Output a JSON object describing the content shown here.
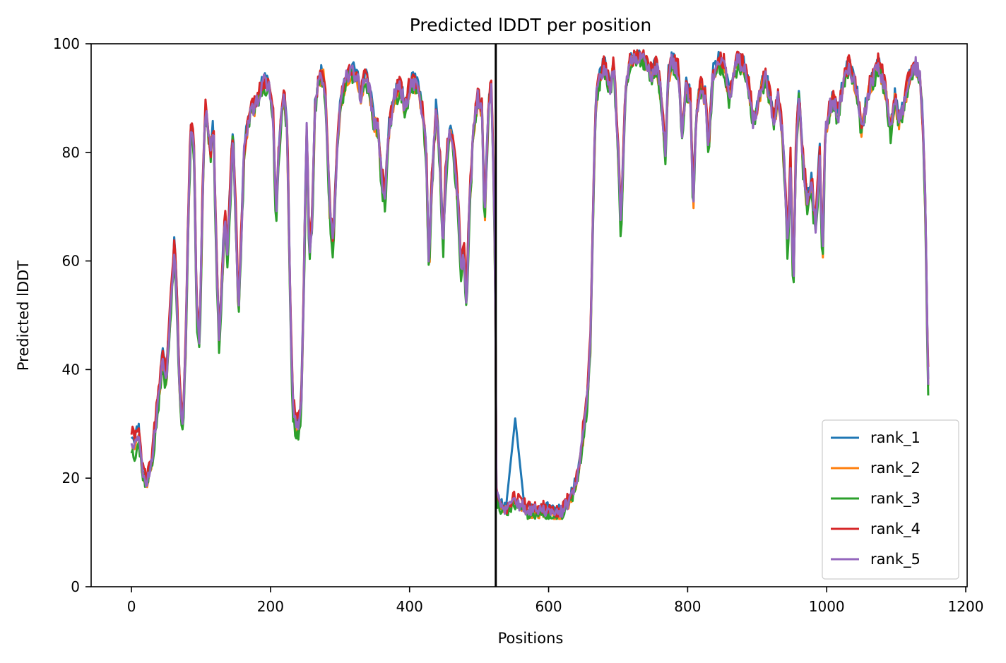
{
  "chart_data": {
    "type": "line",
    "title": "Predicted lDDT per position",
    "xlabel": "Positions",
    "ylabel": "Predicted lDDT",
    "xlim": [
      -58,
      1202
    ],
    "ylim": [
      0,
      100
    ],
    "xticks": [
      0,
      200,
      400,
      600,
      800,
      1000,
      1200
    ],
    "yticks": [
      0,
      20,
      40,
      60,
      80,
      100
    ],
    "grid": false,
    "legend_position": "lower right",
    "vline_x": 524,
    "vline_color": "#000000",
    "series": [
      {
        "name": "rank_1",
        "color": "#1f77b4",
        "offset": 1.2,
        "seed": 11
      },
      {
        "name": "rank_2",
        "color": "#ff7f0e",
        "offset": -0.8,
        "seed": 23
      },
      {
        "name": "rank_3",
        "color": "#2ca02c",
        "offset": -1.8,
        "seed": 37
      },
      {
        "name": "rank_4",
        "color": "#d62728",
        "offset": 1.6,
        "seed": 41
      },
      {
        "name": "rank_5",
        "color": "#9467bd",
        "offset": 0.0,
        "seed": 53
      }
    ],
    "base_profile": [
      [
        0,
        27
      ],
      [
        5,
        26
      ],
      [
        10,
        29
      ],
      [
        15,
        22
      ],
      [
        22,
        19
      ],
      [
        30,
        24
      ],
      [
        38,
        34
      ],
      [
        45,
        42
      ],
      [
        50,
        38
      ],
      [
        58,
        55
      ],
      [
        62,
        63
      ],
      [
        66,
        50
      ],
      [
        70,
        34
      ],
      [
        74,
        30
      ],
      [
        78,
        44
      ],
      [
        82,
        70
      ],
      [
        86,
        86
      ],
      [
        90,
        80
      ],
      [
        94,
        50
      ],
      [
        98,
        45
      ],
      [
        102,
        70
      ],
      [
        106,
        88
      ],
      [
        110,
        84
      ],
      [
        114,
        80
      ],
      [
        118,
        85
      ],
      [
        122,
        62
      ],
      [
        126,
        45
      ],
      [
        130,
        55
      ],
      [
        134,
        68
      ],
      [
        138,
        62
      ],
      [
        142,
        72
      ],
      [
        146,
        84
      ],
      [
        150,
        68
      ],
      [
        154,
        50
      ],
      [
        158,
        65
      ],
      [
        162,
        80
      ],
      [
        168,
        86
      ],
      [
        175,
        88
      ],
      [
        182,
        90
      ],
      [
        190,
        93
      ],
      [
        198,
        92
      ],
      [
        204,
        86
      ],
      [
        208,
        68
      ],
      [
        212,
        80
      ],
      [
        216,
        88
      ],
      [
        220,
        90
      ],
      [
        224,
        84
      ],
      [
        228,
        55
      ],
      [
        232,
        33
      ],
      [
        238,
        29
      ],
      [
        244,
        32
      ],
      [
        248,
        56
      ],
      [
        252,
        84
      ],
      [
        256,
        62
      ],
      [
        260,
        68
      ],
      [
        264,
        88
      ],
      [
        270,
        94
      ],
      [
        276,
        94
      ],
      [
        280,
        88
      ],
      [
        285,
        70
      ],
      [
        290,
        62
      ],
      [
        296,
        82
      ],
      [
        302,
        90
      ],
      [
        310,
        94
      ],
      [
        318,
        95
      ],
      [
        325,
        94
      ],
      [
        330,
        90
      ],
      [
        336,
        94
      ],
      [
        342,
        92
      ],
      [
        348,
        86
      ],
      [
        355,
        84
      ],
      [
        360,
        75
      ],
      [
        365,
        72
      ],
      [
        370,
        84
      ],
      [
        378,
        90
      ],
      [
        386,
        92
      ],
      [
        394,
        88
      ],
      [
        400,
        92
      ],
      [
        406,
        93
      ],
      [
        412,
        92
      ],
      [
        418,
        88
      ],
      [
        424,
        80
      ],
      [
        428,
        58
      ],
      [
        432,
        74
      ],
      [
        438,
        88
      ],
      [
        444,
        78
      ],
      [
        448,
        62
      ],
      [
        452,
        76
      ],
      [
        458,
        84
      ],
      [
        464,
        80
      ],
      [
        470,
        70
      ],
      [
        474,
        58
      ],
      [
        478,
        62
      ],
      [
        482,
        52
      ],
      [
        486,
        70
      ],
      [
        492,
        84
      ],
      [
        498,
        90
      ],
      [
        504,
        88
      ],
      [
        508,
        68
      ],
      [
        514,
        90
      ],
      [
        518,
        92
      ],
      [
        523,
        62
      ],
      [
        525,
        17
      ],
      [
        530,
        15
      ],
      [
        540,
        14
      ],
      [
        550,
        16
      ],
      [
        560,
        15
      ],
      [
        570,
        14
      ],
      [
        580,
        14
      ],
      [
        590,
        14
      ],
      [
        600,
        14
      ],
      [
        610,
        13
      ],
      [
        620,
        14
      ],
      [
        630,
        16
      ],
      [
        640,
        19
      ],
      [
        648,
        26
      ],
      [
        655,
        34
      ],
      [
        660,
        44
      ],
      [
        664,
        70
      ],
      [
        668,
        90
      ],
      [
        674,
        94
      ],
      [
        680,
        96
      ],
      [
        688,
        92
      ],
      [
        694,
        96
      ],
      [
        700,
        80
      ],
      [
        704,
        66
      ],
      [
        710,
        90
      ],
      [
        716,
        96
      ],
      [
        724,
        97
      ],
      [
        732,
        98
      ],
      [
        740,
        97
      ],
      [
        748,
        94
      ],
      [
        756,
        96
      ],
      [
        762,
        90
      ],
      [
        768,
        80
      ],
      [
        772,
        94
      ],
      [
        778,
        97
      ],
      [
        786,
        95
      ],
      [
        792,
        84
      ],
      [
        798,
        92
      ],
      [
        804,
        90
      ],
      [
        808,
        70
      ],
      [
        812,
        86
      ],
      [
        818,
        92
      ],
      [
        826,
        90
      ],
      [
        830,
        80
      ],
      [
        836,
        94
      ],
      [
        844,
        97
      ],
      [
        852,
        96
      ],
      [
        860,
        90
      ],
      [
        866,
        94
      ],
      [
        872,
        97
      ],
      [
        880,
        96
      ],
      [
        888,
        92
      ],
      [
        894,
        86
      ],
      [
        900,
        88
      ],
      [
        906,
        92
      ],
      [
        912,
        94
      ],
      [
        918,
        90
      ],
      [
        924,
        86
      ],
      [
        930,
        90
      ],
      [
        936,
        84
      ],
      [
        940,
        74
      ],
      [
        944,
        62
      ],
      [
        948,
        78
      ],
      [
        952,
        54
      ],
      [
        956,
        82
      ],
      [
        960,
        90
      ],
      [
        966,
        78
      ],
      [
        972,
        70
      ],
      [
        978,
        74
      ],
      [
        984,
        66
      ],
      [
        990,
        80
      ],
      [
        994,
        60
      ],
      [
        998,
        84
      ],
      [
        1004,
        88
      ],
      [
        1010,
        90
      ],
      [
        1016,
        86
      ],
      [
        1020,
        90
      ],
      [
        1026,
        94
      ],
      [
        1032,
        96
      ],
      [
        1038,
        94
      ],
      [
        1044,
        90
      ],
      [
        1050,
        84
      ],
      [
        1056,
        88
      ],
      [
        1062,
        92
      ],
      [
        1068,
        94
      ],
      [
        1074,
        96
      ],
      [
        1080,
        94
      ],
      [
        1086,
        90
      ],
      [
        1092,
        84
      ],
      [
        1098,
        90
      ],
      [
        1104,
        86
      ],
      [
        1110,
        88
      ],
      [
        1116,
        92
      ],
      [
        1122,
        95
      ],
      [
        1128,
        96
      ],
      [
        1134,
        94
      ],
      [
        1138,
        86
      ],
      [
        1142,
        70
      ],
      [
        1145,
        44
      ],
      [
        1147,
        32
      ]
    ],
    "rank_1_bump": {
      "x_from": 540,
      "x_to": 566,
      "peak_x": 552,
      "peak_y": 31
    },
    "legend": [
      "rank_1",
      "rank_2",
      "rank_3",
      "rank_4",
      "rank_5"
    ]
  }
}
